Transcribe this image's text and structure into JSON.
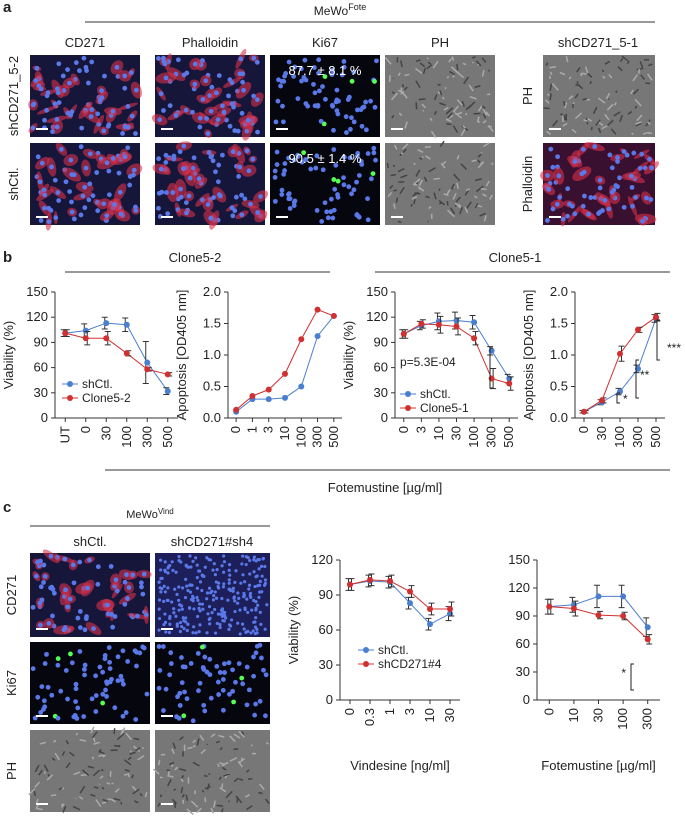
{
  "panels": {
    "a": {
      "label": "a",
      "title": "MeWo",
      "title_sup": "Fote",
      "columns": [
        "CD271",
        "Phalloidin",
        "Ki67",
        "PH",
        "shCD271_5-1"
      ],
      "rows": [
        "shCD271_5-2",
        "shCtl."
      ],
      "side_rows": [
        "PH",
        "Phalloidin"
      ],
      "overlays": [
        "87.7 ± 8.1 %",
        "90.5 ± 1.4 %"
      ]
    },
    "b": {
      "label": "b",
      "groups": [
        "Clone5-2",
        "Clone5-1"
      ],
      "x_label": "Fotemustine [µg/ml]"
    },
    "c": {
      "label": "c",
      "title": "MeWo",
      "title_sup": "Vind",
      "columns": [
        "shCtl.",
        "shCD271#sh4"
      ],
      "rows": [
        "CD271",
        "Ki67",
        "PH"
      ]
    }
  },
  "chart_data": [
    {
      "type": "line",
      "y_label": "Viability (%)",
      "categories": [
        "UT",
        "0",
        "30",
        "100",
        "300",
        "500"
      ],
      "ylim": [
        0,
        150
      ],
      "yticks": [
        0,
        30,
        60,
        90,
        120,
        150
      ],
      "legend": true,
      "series": [
        {
          "name": "shCtl.",
          "color": "#4a7fd0",
          "values": [
            101,
            104,
            113,
            111,
            66,
            32
          ],
          "errors": [
            4,
            8,
            7,
            8,
            25,
            4
          ]
        },
        {
          "name": "Clone5-2",
          "color": "#d03030",
          "values": [
            101,
            95,
            95,
            77,
            58,
            52
          ],
          "errors": [
            4,
            8,
            8,
            3,
            2,
            2
          ]
        }
      ]
    },
    {
      "type": "line",
      "y_label": "Apoptosis [OD405 nm]",
      "categories": [
        "0",
        "1",
        "3",
        "10",
        "100",
        "300",
        "500"
      ],
      "ylim": [
        0,
        2
      ],
      "yticks": [
        {
          "value": 0,
          "label": "0.0"
        },
        {
          "value": 0.5,
          "label": "0.5"
        },
        {
          "value": 1,
          "label": "1.0"
        },
        {
          "value": 1.5,
          "label": "1.5"
        },
        {
          "value": 2,
          "label": "2.0"
        }
      ],
      "legend": false,
      "series": [
        {
          "color": "#4a7fd0",
          "values": [
            0.1,
            0.3,
            0.3,
            0.32,
            0.5,
            1.3,
            1.62
          ]
        },
        {
          "color": "#d03030",
          "values": [
            0.13,
            0.35,
            0.45,
            0.7,
            1.25,
            1.72,
            1.62
          ]
        }
      ]
    },
    {
      "type": "line",
      "y_label": "Viability (%)",
      "categories": [
        "0",
        "3",
        "10",
        "30",
        "100",
        "300",
        "500"
      ],
      "ylim": [
        0,
        150
      ],
      "yticks": [
        0,
        30,
        60,
        90,
        120,
        150
      ],
      "legend": true,
      "annotations": [
        "p=5.3E-04"
      ],
      "series": [
        {
          "name": "shCtl.",
          "color": "#4a7fd0",
          "values": [
            100,
            110,
            115,
            116,
            114,
            80,
            47
          ],
          "errors": [
            5,
            5,
            10,
            10,
            8,
            5,
            5
          ]
        },
        {
          "name": "Clone5-1",
          "color": "#d03030",
          "values": [
            100,
            112,
            111,
            109,
            95,
            47,
            41
          ],
          "errors": [
            5,
            5,
            10,
            10,
            8,
            12,
            8
          ]
        }
      ]
    },
    {
      "type": "line",
      "y_label": "Apoptosis [OD405 nm]",
      "categories": [
        "0",
        "30",
        "100",
        "300",
        "500"
      ],
      "ylim": [
        0,
        2
      ],
      "yticks": [
        {
          "value": 0,
          "label": "0.0"
        },
        {
          "value": 0.5,
          "label": "0.5"
        },
        {
          "value": 1,
          "label": "1.0"
        },
        {
          "value": 1.5,
          "label": "1.5"
        },
        {
          "value": 2,
          "label": "2.0"
        }
      ],
      "legend": false,
      "annotations": [
        "*",
        "**",
        "***"
      ],
      "series": [
        {
          "color": "#4a7fd0",
          "values": [
            0.1,
            0.25,
            0.42,
            0.78,
            1.58
          ],
          "errors": [
            0.02,
            0.04,
            0.05,
            0.06,
            0.06
          ]
        },
        {
          "color": "#d03030",
          "values": [
            0.1,
            0.28,
            1.02,
            1.4,
            1.6
          ],
          "errors": [
            0.02,
            0.04,
            0.12,
            0.04,
            0.06
          ]
        }
      ]
    },
    {
      "type": "line",
      "y_label": "Viability (%)",
      "x_label": "Vindesine [ng/ml]",
      "categories": [
        "0",
        "0.3",
        "1",
        "3",
        "10",
        "30"
      ],
      "ylim": [
        0,
        120
      ],
      "yticks": [
        0,
        30,
        60,
        90,
        120
      ],
      "legend": true,
      "series": [
        {
          "name": "shCtl.",
          "color": "#4a7fd0",
          "values": [
            99,
            102,
            101,
            83,
            65,
            74
          ],
          "errors": [
            5,
            5,
            5,
            5,
            5,
            6
          ]
        },
        {
          "name": "shCD271#4",
          "color": "#d03030",
          "values": [
            99,
            103,
            102,
            93,
            78,
            78
          ],
          "errors": [
            5,
            5,
            5,
            5,
            5,
            6
          ]
        }
      ]
    },
    {
      "type": "line",
      "x_label": "Fotemustine [µg/ml]",
      "categories": [
        "0",
        "10",
        "30",
        "100",
        "300"
      ],
      "ylim": [
        0,
        150
      ],
      "yticks": [
        0,
        30,
        60,
        90,
        120,
        150
      ],
      "legend": false,
      "annotations": [
        "*"
      ],
      "series": [
        {
          "color": "#4a7fd0",
          "values": [
            100,
            102,
            111,
            111,
            78
          ],
          "errors": [
            8,
            8,
            12,
            12,
            10
          ]
        },
        {
          "color": "#d03030",
          "values": [
            100,
            98,
            91,
            90,
            65
          ],
          "errors": [
            8,
            8,
            4,
            4,
            5
          ]
        }
      ]
    }
  ]
}
